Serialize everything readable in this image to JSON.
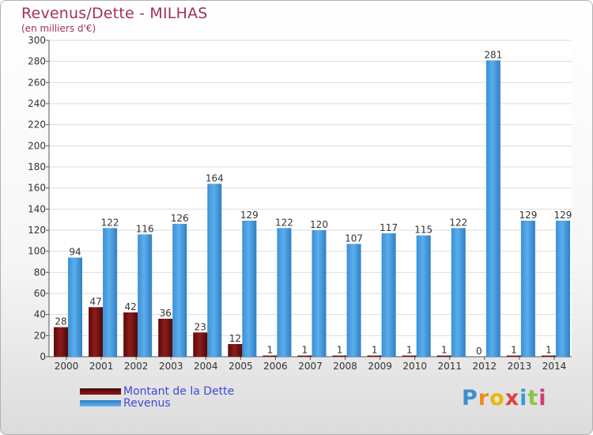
{
  "chart_data": {
    "type": "bar",
    "title": "Revenus/Dette - MILHAS",
    "subtitle": "(en milliers d'€)",
    "categories": [
      "2000",
      "2001",
      "2002",
      "2003",
      "2004",
      "2005",
      "2006",
      "2007",
      "2008",
      "2009",
      "2010",
      "2011",
      "2012",
      "2013",
      "2014"
    ],
    "series": [
      {
        "name": "Montant de la Dette",
        "values": [
          28,
          47,
          42,
          36,
          23,
          12,
          1,
          1,
          1,
          1,
          1,
          1,
          0,
          1,
          1
        ]
      },
      {
        "name": "Revenus",
        "values": [
          94,
          122,
          116,
          126,
          164,
          129,
          122,
          120,
          107,
          117,
          115,
          122,
          281,
          129,
          129
        ]
      }
    ],
    "ylim": [
      0,
      300
    ],
    "yticks": [
      0,
      20,
      40,
      60,
      80,
      100,
      120,
      140,
      160,
      180,
      200,
      220,
      240,
      260,
      280,
      300
    ],
    "grid": true,
    "legend": "bottom-left"
  },
  "colors": {
    "dette": "#7a1010",
    "revenus": "#4a9fe0",
    "title": "#a0305e"
  },
  "logo": {
    "letters": [
      "P",
      "r",
      "o",
      "x",
      "i",
      "t",
      "i"
    ]
  }
}
